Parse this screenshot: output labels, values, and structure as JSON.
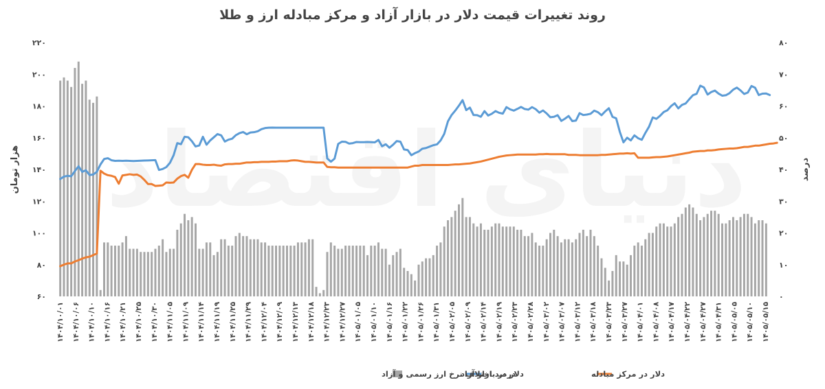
{
  "chart_data": {
    "type": "line+bar",
    "title": "روند تغییرات قیمت دلار در بازار آزاد و مرکز مبادله ارز و طلا",
    "watermark": "دنیای اقتصاد",
    "left_axis": {
      "label": "هزار تومان",
      "min": 60,
      "max": 220,
      "ticks": [
        "۶۰",
        "۸۰",
        "۱۰۰",
        "۱۲۰",
        "۱۴۰",
        "۱۶۰",
        "۱۸۰",
        "۲۰۰",
        "۲۲۰"
      ]
    },
    "right_axis": {
      "label": "درصد",
      "min": 0,
      "max": 80,
      "ticks": [
        "۰",
        "۱۰",
        "۲۰",
        "۳۰",
        "۴۰",
        "۵۰",
        "۶۰",
        "۷۰",
        "۸۰"
      ]
    },
    "x_tick_labels": [
      "۱۴۰۴/۱۰/۰۱",
      "۱۴۰۴/۱۰/۰۶",
      "۱۴۰۴/۱۰/۱۰",
      "۱۴۰۴/۱۰/۱۶",
      "۱۴۰۴/۱۰/۲۱",
      "۱۴۰۴/۱۰/۲۵",
      "۱۴۰۴/۱۰/۳۰",
      "۱۴۰۴/۱۱/۰۵",
      "۱۴۰۴/۱۱/۰۹",
      "۱۴۰۴/۱۱/۱۴",
      "۱۴۰۴/۱۱/۱۹",
      "۱۴۰۴/۱۱/۲۵",
      "۱۴۰۴/۱۱/۲۹",
      "۱۴۰۴/۱۲/۰۴",
      "۱۴۰۴/۱۲/۰۹",
      "۱۴۰۴/۱۲/۱۳",
      "۱۴۰۴/۱۲/۱۸",
      "۱۴۰۴/۱۲/۲۳",
      "۱۴۰۴/۱۲/۲۷",
      "۱۴۰۵/۰۱/۰۵",
      "۱۴۰۵/۰۱/۱۰",
      "۱۴۰۵/۰۱/۱۶",
      "۱۴۰۵/۰۱/۲۲",
      "۱۴۰۵/۰۱/۲۶",
      "۱۴۰۵/۰۱/۳۱",
      "۱۴۰۵/۰۲/۰۵",
      "۱۴۰۵/۰۲/۰۹",
      "۱۴۰۵/۰۲/۱۴",
      "۱۴۰۵/۰۲/۱۹",
      "۱۴۰۵/۰۲/۲۳",
      "۱۴۰۵/۰۲/۲۸",
      "۱۴۰۵/۰۳/۰۲",
      "۱۴۰۵/۰۳/۰۷",
      "۱۴۰۵/۰۳/۱۲",
      "۱۴۰۵/۰۳/۱۸",
      "۱۴۰۵/۰۳/۲۳",
      "۱۴۰۵/۰۳/۲۷",
      "۱۴۰۵/۰۴/۰۱",
      "۱۴۰۵/۰۴/۰۸",
      "۱۴۰۵/۰۴/۱۷",
      "۱۴۰۵/۰۴/۲۲",
      "۱۴۰۵/۰۴/۲۷",
      "۱۴۰۵/۰۴/۳۱",
      "۱۴۰۵/۰۵/۰۵",
      "۱۴۰۵/۰۵/۱۰",
      "۱۴۰۵/۰۵/۱۵"
    ],
    "series": [
      {
        "name": "درصد اختلاف نرخ ارز رسمی و آزاد",
        "kind": "bar",
        "axis": "right",
        "color": "#a6a6a6",
        "values": [
          68,
          69,
          68,
          66,
          72,
          74,
          67,
          68,
          62,
          61,
          63,
          2,
          17,
          17,
          16,
          16,
          16,
          17,
          19,
          15,
          15,
          15,
          14,
          14,
          14,
          14,
          15,
          16,
          18,
          14,
          15,
          15,
          21,
          23,
          26,
          24,
          25,
          23,
          15,
          15,
          17,
          17,
          13,
          14,
          18,
          18,
          16,
          16,
          19,
          20,
          19,
          19,
          18,
          18,
          18,
          17,
          17,
          16,
          16,
          16,
          16,
          16,
          16,
          16,
          16,
          17,
          17,
          17,
          18,
          18,
          3,
          1,
          2,
          14,
          17,
          16,
          15,
          15,
          16,
          16,
          16,
          16,
          16,
          16,
          13,
          16,
          16,
          17,
          15,
          15,
          10,
          13,
          14,
          15,
          9,
          8,
          7,
          5,
          10,
          11,
          12,
          12,
          13,
          16,
          17,
          22,
          24,
          25,
          27,
          29,
          31,
          25,
          25,
          23,
          22,
          23,
          21,
          21,
          22,
          23,
          23,
          22,
          22,
          22,
          22,
          21,
          21,
          19,
          19,
          20,
          17,
          16,
          16,
          18,
          20,
          21,
          19,
          17,
          18,
          18,
          17,
          18,
          20,
          21,
          19,
          21,
          19,
          16,
          12,
          9,
          5,
          8,
          13,
          11,
          11,
          10,
          13,
          16,
          17,
          16,
          18,
          20,
          20,
          22,
          23,
          23,
          22,
          22,
          23,
          25,
          26,
          28,
          29,
          28,
          26,
          24,
          25,
          26,
          27,
          27,
          26,
          23,
          23,
          24,
          25,
          24,
          25,
          26,
          26,
          25,
          23,
          24,
          24,
          23
        ]
      },
      {
        "name": "دلار در بازار آزاد",
        "kind": "line",
        "axis": "left",
        "color": "#5b9bd5",
        "values": [
          134,
          135.5,
          136,
          135.7,
          139,
          142,
          138.5,
          139.5,
          136.5,
          136.8,
          138.5,
          143.2,
          146.6,
          147.1,
          145.8,
          145.4,
          145.5,
          145.4,
          145.5,
          145.4,
          145.3,
          145.4,
          145.5,
          145.6,
          145.7,
          145.8,
          145.9,
          139.7,
          140.3,
          141.5,
          144.2,
          149,
          156.6,
          155.9,
          160.6,
          160.3,
          157.8,
          154.5,
          155.1,
          160.6,
          155.6,
          158.3,
          160.3,
          162.3,
          161.5,
          157.6,
          158.8,
          159.4,
          161.6,
          162.9,
          163.6,
          162.2,
          163.3,
          163.5,
          164.1,
          165.4,
          166.1,
          166.3,
          166.4,
          166.3,
          166.3,
          166.3,
          166.3,
          166.3,
          166.3,
          166.3,
          166.3,
          166.3,
          166.3,
          166.3,
          166.3,
          166.3,
          166.3,
          146.9,
          144.9,
          146.8,
          156.1,
          157.5,
          157.4,
          156.3,
          156.6,
          157.3,
          157.2,
          157.2,
          157.3,
          157.2,
          157.1,
          158.6,
          154.6,
          155.9,
          153.7,
          155.6,
          157.9,
          157.5,
          152.6,
          152.2,
          149,
          150.3,
          151.3,
          153.1,
          153.5,
          154.4,
          155.3,
          155.8,
          158.3,
          162.5,
          170.3,
          174.3,
          177.1,
          180.2,
          183.7,
          177.4,
          179,
          174.3,
          174.2,
          173.2,
          176.8,
          174,
          175.1,
          176.8,
          175.7,
          175.2,
          179.3,
          177.9,
          177.1,
          178.2,
          179.4,
          178.1,
          177.7,
          179.3,
          178,
          175.8,
          177.2,
          175.3,
          172.9,
          173.2,
          174.2,
          170.6,
          172,
          173.7,
          170.5,
          170.8,
          175.5,
          174.3,
          174.6,
          175.1,
          177.1,
          176.1,
          174.2,
          176.6,
          178.6,
          173.2,
          172.2,
          163.7,
          157.1,
          160,
          158.3,
          161.5,
          159.7,
          158.7,
          163.1,
          167,
          172.8,
          171.9,
          173.8,
          176.2,
          177.3,
          179.9,
          181.7,
          178.5,
          180.7,
          181.6,
          184.3,
          186.8,
          187.7,
          192.8,
          191.7,
          187.2,
          188.8,
          189.7,
          187.8,
          186.5,
          186.8,
          188.1,
          190.3,
          191.6,
          189.8,
          187.6,
          188.5,
          192.6,
          191.5,
          186.9,
          187.8,
          187.9,
          186.9
        ]
      },
      {
        "name": "دلار در مرکز مبادله",
        "kind": "line",
        "axis": "right",
        "color": "#ed7d31",
        "values": [
          9.5,
          10,
          10.4,
          10.4,
          11,
          11.4,
          11.9,
          12.3,
          12.5,
          13,
          13.5,
          39.6,
          38.7,
          38.2,
          38,
          37.6,
          35.5,
          38.1,
          38.3,
          38.5,
          38.3,
          38.4,
          37.8,
          36.7,
          35.4,
          35.4,
          34.8,
          34.9,
          35,
          35.9,
          35.8,
          35.9,
          37.1,
          37.9,
          38.3,
          37.4,
          39.9,
          41.7,
          41.7,
          41.5,
          41.4,
          41.4,
          41.5,
          41.3,
          41.2,
          41.6,
          41.7,
          41.7,
          41.8,
          41.8,
          42,
          42.2,
          42.2,
          42.3,
          42.3,
          42.4,
          42.4,
          42.4,
          42.5,
          42.5,
          42.6,
          42.6,
          42.6,
          42.8,
          42.9,
          42.8,
          42.6,
          42.4,
          42.4,
          42.3,
          42.2,
          42.2,
          42.2,
          40.8,
          40.7,
          40.7,
          40.6,
          40.6,
          40.6,
          40.6,
          40.6,
          40.6,
          40.6,
          40.6,
          40.6,
          40.6,
          40.6,
          40.6,
          40.6,
          40.6,
          40.6,
          40.6,
          40.6,
          40.6,
          40.6,
          40.6,
          40.9,
          41.2,
          41.2,
          41.4,
          41.4,
          41.4,
          41.4,
          41.4,
          41.4,
          41.4,
          41.4,
          41.5,
          41.6,
          41.6,
          41.7,
          41.8,
          41.9,
          42.1,
          42.3,
          42.5,
          42.8,
          43.1,
          43.4,
          43.7,
          44,
          44.2,
          44.4,
          44.5,
          44.6,
          44.7,
          44.7,
          44.7,
          44.7,
          44.7,
          44.7,
          44.8,
          44.8,
          44.9,
          44.8,
          44.8,
          44.8,
          44.8,
          44.8,
          44.6,
          44.6,
          44.6,
          44.5,
          44.5,
          44.5,
          44.5,
          44.5,
          44.5,
          44.6,
          44.6,
          44.7,
          44.8,
          44.9,
          45,
          45,
          45.1,
          45,
          45.1,
          43.7,
          43.7,
          43.7,
          43.7,
          43.8,
          43.9,
          43.9,
          44,
          44.1,
          44.3,
          44.5,
          44.7,
          44.9,
          45.1,
          45.3,
          45.6,
          45.7,
          45.8,
          45.8,
          46,
          46,
          46.1,
          46.3,
          46.4,
          46.5,
          46.6,
          46.6,
          46.7,
          46.9,
          47.1,
          47.1,
          47.3,
          47.5,
          47.5,
          47.7,
          47.9,
          48.1,
          48.2,
          48.4
        ]
      }
    ],
    "legend": [
      {
        "name": "دلار در مرکز مبادله",
        "kind": "line",
        "color": "#ed7d31"
      },
      {
        "name": "دلار در بازار آزاد",
        "kind": "line",
        "color": "#5b9bd5"
      },
      {
        "name": "درصد اختلاف نرخ ارز رسمی و آزاد",
        "kind": "bar",
        "color": "#a6a6a6"
      }
    ],
    "legend_position": "bottom",
    "grid": false
  }
}
